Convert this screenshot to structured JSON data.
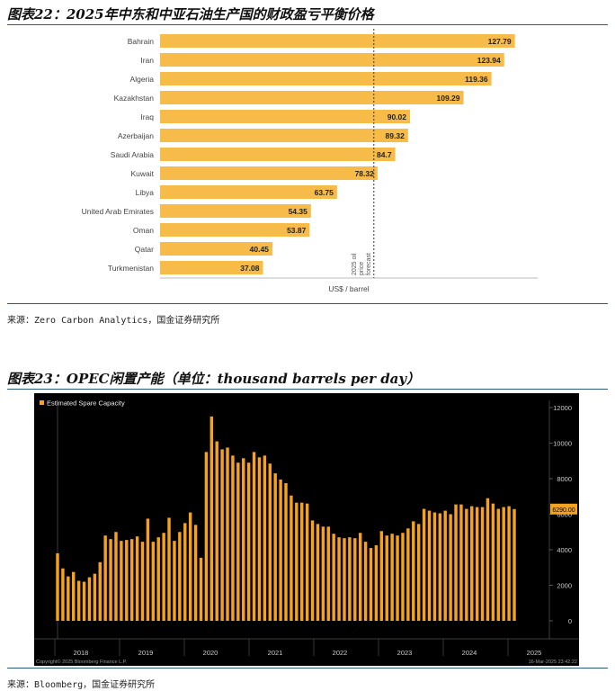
{
  "figures": [
    {
      "title": "图表22：2025年中东和中亚石油生产国的财政盈亏平衡价格",
      "source": "来源：Zero Carbon Analytics，国金证券研究所"
    },
    {
      "title": "图表23：OPEC闲置产能（单位：thousand barrels per day）",
      "source": "来源：Bloomberg，国金证券研究所"
    }
  ],
  "chart_data": [
    {
      "type": "bar",
      "orientation": "horizontal",
      "categories": [
        "Bahrain",
        "Iran",
        "Algeria",
        "Kazakhstan",
        "Iraq",
        "Azerbaijan",
        "Saudi Arabia",
        "Kuwait",
        "Libya",
        "United Arab Emirates",
        "Oman",
        "Qatar",
        "Turkmenistan"
      ],
      "values": [
        127.79,
        123.94,
        119.36,
        109.29,
        90.02,
        89.32,
        84.7,
        78.32,
        63.75,
        54.35,
        53.87,
        40.45,
        37.08
      ],
      "value_labels": [
        "127.79",
        "123.94",
        "119.36",
        "109.29",
        "90.02",
        "89.32",
        "84.7",
        "78.32",
        "63.75",
        "54.35",
        "53.87",
        "40.45",
        "37.08"
      ],
      "xlabel": "US$ / barrel",
      "xlim": [
        0,
        136
      ],
      "reference_line": {
        "value": 77,
        "label": "2025 oil price forecast",
        "label_lines": [
          "2025 oil",
          "price",
          "forecast"
        ]
      },
      "bar_color": "#f7bb4a",
      "grid": false
    },
    {
      "type": "bar",
      "series": [
        {
          "name": "Estimated Spare Capacity",
          "color": "#f5a21e"
        }
      ],
      "values": [
        3800,
        2950,
        2500,
        2750,
        2250,
        2200,
        2450,
        2650,
        3300,
        4800,
        4600,
        5000,
        4500,
        4550,
        4600,
        4750,
        4450,
        5750,
        4450,
        4700,
        4950,
        5800,
        4500,
        5000,
        5500,
        6100,
        5400,
        3550,
        9500,
        11500,
        10100,
        9650,
        9750,
        9300,
        8900,
        9150,
        8900,
        9500,
        9200,
        9300,
        8850,
        8300,
        7950,
        7750,
        7050,
        6650,
        6650,
        6600,
        5650,
        5450,
        5300,
        5300,
        4900,
        4700,
        4650,
        4700,
        4650,
        4950,
        4450,
        4100,
        4250,
        5050,
        4800,
        4900,
        4800,
        4950,
        5200,
        5600,
        5450,
        6300,
        6200,
        6100,
        6050,
        6200,
        6000,
        6550,
        6550,
        6300,
        6450,
        6400,
        6400,
        6900,
        6600,
        6300,
        6400,
        6450,
        6290
      ],
      "year_labels": [
        "2018",
        "2019",
        "2020",
        "2021",
        "2022",
        "2023",
        "2024",
        "2025"
      ],
      "ylim": [
        0,
        12000
      ],
      "yticks": [
        "0",
        "2000",
        "4000",
        "6000",
        "8000",
        "10000",
        "12000"
      ],
      "last_value_label": "6290.00",
      "background": "#000000",
      "copyright": "Copyright© 2025 Bloomberg Finance L.P.",
      "timestamp": "16-Mar-2025 23:42:22"
    }
  ]
}
